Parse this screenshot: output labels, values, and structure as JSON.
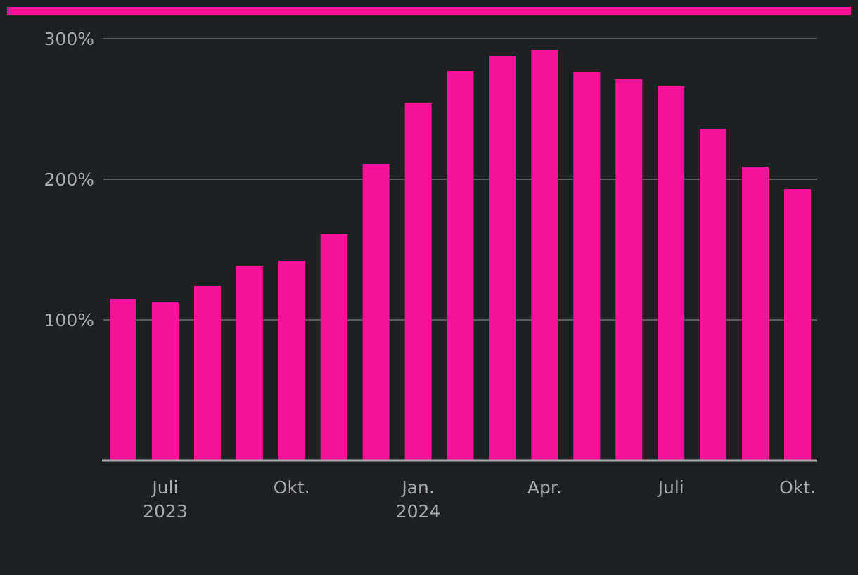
{
  "colors": {
    "background": "#1f2022",
    "bar": "#f5139a",
    "accent": "#f5139a",
    "gridline": "#5b5c5e",
    "axis": "#a9aaac",
    "text": "#a9aaac"
  },
  "chart_data": {
    "type": "bar",
    "title": "",
    "xlabel": "",
    "ylabel": "",
    "categories": [
      "2023-06",
      "2023-07",
      "2023-08",
      "2023-09",
      "2023-10",
      "2023-11",
      "2023-12",
      "2024-01",
      "2024-02",
      "2024-03",
      "2024-04",
      "2024-05",
      "2024-06",
      "2024-07",
      "2024-08",
      "2024-09",
      "2024-10"
    ],
    "values": [
      115,
      113,
      124,
      138,
      142,
      161,
      211,
      254,
      277,
      288,
      292,
      276,
      271,
      266,
      236,
      209,
      193
    ],
    "ylim": [
      0,
      300
    ],
    "y_ticks": [
      {
        "value": 100,
        "label": "100%"
      },
      {
        "value": 200,
        "label": "200%"
      },
      {
        "value": 300,
        "label": "300%"
      }
    ],
    "x_ticks": [
      {
        "category_index": 1,
        "lines": [
          "Juli",
          "2023"
        ]
      },
      {
        "category_index": 4,
        "lines": [
          "Okt."
        ]
      },
      {
        "category_index": 7,
        "lines": [
          "Jan.",
          "2024"
        ]
      },
      {
        "category_index": 10,
        "lines": [
          "Apr."
        ]
      },
      {
        "category_index": 13,
        "lines": [
          "Juli"
        ]
      },
      {
        "category_index": 16,
        "lines": [
          "Okt."
        ]
      }
    ],
    "grid": true,
    "legend": "none"
  }
}
